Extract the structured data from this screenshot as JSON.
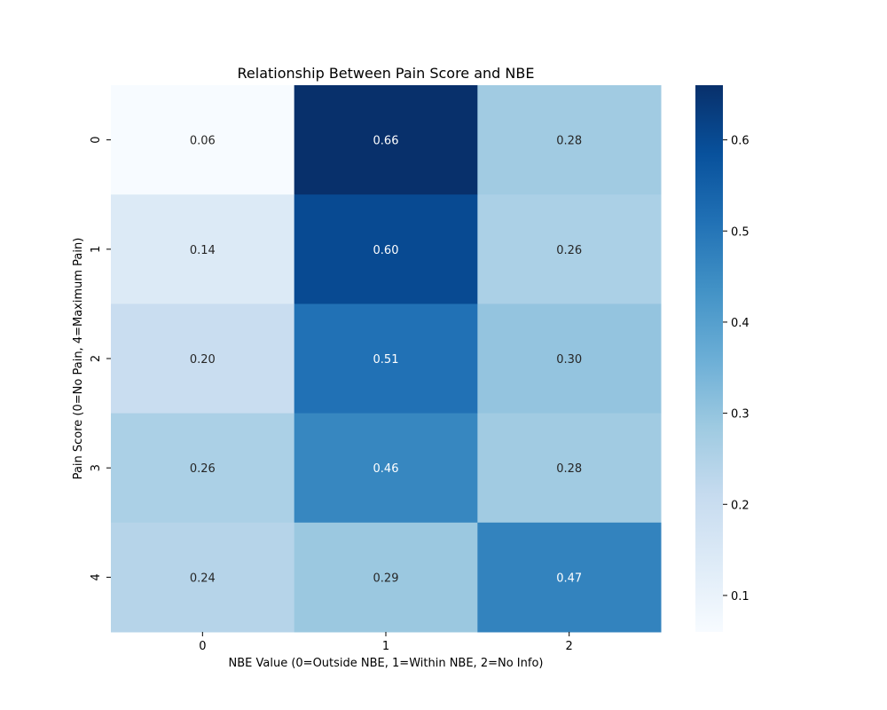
{
  "chart_data": {
    "type": "heatmap",
    "title": "Relationship Between Pain Score and NBE",
    "xlabel": "NBE Value (0=Outside NBE, 1=Within NBE, 2=No Info)",
    "ylabel": "Pain Score (0=No Pain, 4=Maximum Pain)",
    "x_categories": [
      "0",
      "1",
      "2"
    ],
    "y_categories": [
      "0",
      "1",
      "2",
      "3",
      "4"
    ],
    "values": [
      [
        0.06,
        0.66,
        0.28
      ],
      [
        0.14,
        0.6,
        0.26
      ],
      [
        0.2,
        0.51,
        0.3
      ],
      [
        0.26,
        0.46,
        0.28
      ],
      [
        0.24,
        0.29,
        0.47
      ]
    ],
    "annotations": [
      [
        "0.06",
        "0.66",
        "0.28"
      ],
      [
        "0.14",
        "0.60",
        "0.26"
      ],
      [
        "0.20",
        "0.51",
        "0.30"
      ],
      [
        "0.26",
        "0.46",
        "0.28"
      ],
      [
        "0.24",
        "0.29",
        "0.47"
      ]
    ],
    "colormap": "Blues",
    "color_range": [
      0.06,
      0.66
    ],
    "colorbar_ticks": [
      0.1,
      0.2,
      0.3,
      0.4,
      0.5,
      0.6
    ],
    "colorbar_tick_labels": [
      "0.1",
      "0.2",
      "0.3",
      "0.4",
      "0.5",
      "0.6"
    ],
    "grid": false
  }
}
